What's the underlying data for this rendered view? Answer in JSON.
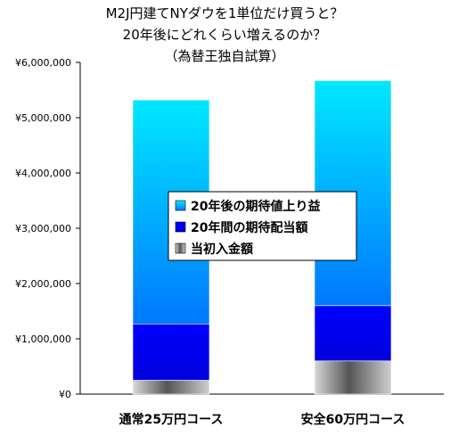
{
  "chart_data": {
    "type": "bar",
    "stacked": true,
    "title_lines": [
      "M2J円建てNYダウを1単位だけ買うと？",
      "20年後にどれくらい増えるのか？",
      "（為替王独自試算）"
    ],
    "categories": [
      "通常25万円コース",
      "安全60万円コース"
    ],
    "series": [
      {
        "name": "当初入金額",
        "values": [
          250000,
          600000
        ],
        "color": "#444444"
      },
      {
        "name": "20年間の期待配当額",
        "values": [
          1020000,
          1000000
        ],
        "color": "#0000ee"
      },
      {
        "name": "20年後の期待値上り益",
        "values": [
          4050000,
          4070000
        ],
        "color": "#00b4ff"
      }
    ],
    "ylim": [
      0,
      6000000
    ],
    "yticks": [
      "¥0",
      "¥1,000,000",
      "¥2,000,000",
      "¥3,000,000",
      "¥4,000,000",
      "¥5,000,000",
      "¥6,000,000"
    ],
    "legend_position": "center",
    "grid": false
  }
}
